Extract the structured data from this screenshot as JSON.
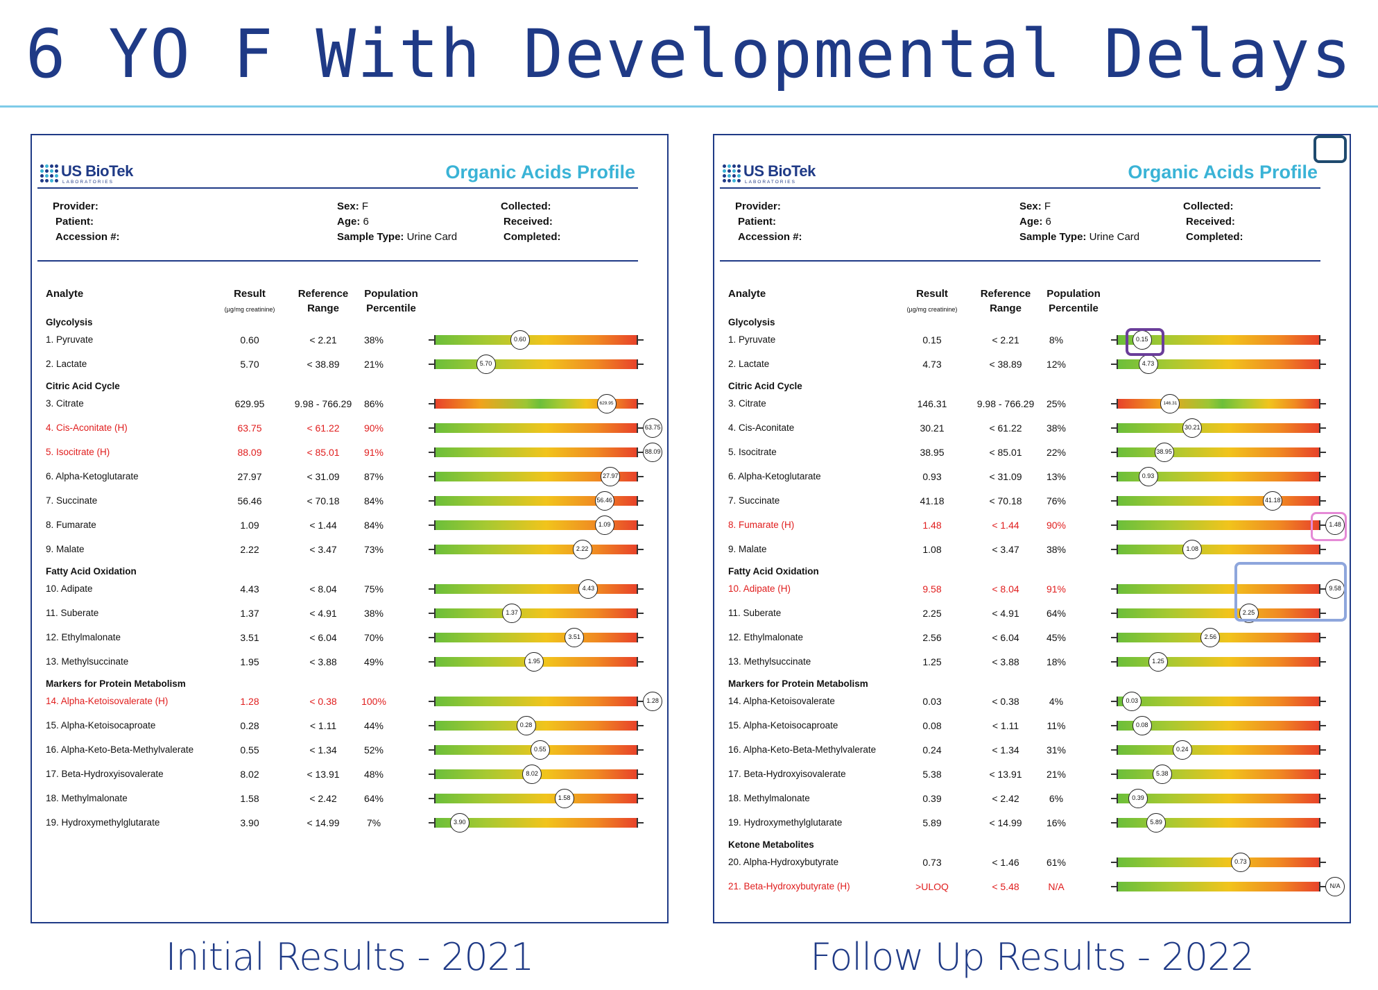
{
  "title": "6 YO F With Developmental Delays",
  "panels": [
    {
      "caption": "Initial Results - 2021",
      "logo": {
        "name": "US BioTek",
        "sub": "LABORATORIES"
      },
      "report_title": "Organic Acids Profile",
      "info": {
        "provider_label": "Provider:",
        "patient_label": "Patient:",
        "accession_label": "Accession #:",
        "sex_label": "Sex:",
        "sex": "F",
        "age_label": "Age:",
        "age": "6",
        "sample_label": "Sample Type:",
        "sample": "Urine Card",
        "collected_label": "Collected:",
        "received_label": "Received:",
        "completed_label": "Completed:"
      },
      "headers": {
        "analyte": "Analyte",
        "result": "Result",
        "unit": "(µg/mg creatinine)",
        "ref1": "Reference",
        "ref2": "Range",
        "pop1": "Population",
        "pop2": "Percentile"
      },
      "rows": [
        {
          "type": "section",
          "label": "Glycolysis"
        },
        {
          "type": "analyte",
          "name": "1. Pyruvate",
          "result": "0.60",
          "ref": "< 2.21",
          "pct": "38%",
          "pos": 0.42,
          "marker": "0.60"
        },
        {
          "type": "analyte",
          "name": "2. Lactate",
          "result": "5.70",
          "ref": "< 38.89",
          "pct": "21%",
          "pos": 0.25,
          "marker": "5.70"
        },
        {
          "type": "section",
          "label": "Citric Acid Cycle"
        },
        {
          "type": "analyte",
          "name": "3. Citrate",
          "result": "629.95",
          "ref": "9.98 - 766.29",
          "pct": "86%",
          "pos": 0.85,
          "marker": "629.95",
          "bar": "mid",
          "small": true
        },
        {
          "type": "analyte",
          "name": "4. Cis-Aconitate (H)",
          "result": "63.75",
          "ref": "< 61.22",
          "pct": "90%",
          "pos": 1.08,
          "marker": "63.75",
          "high": true
        },
        {
          "type": "analyte",
          "name": "5. Isocitrate (H)",
          "result": "88.09",
          "ref": "< 85.01",
          "pct": "91%",
          "pos": 1.08,
          "marker": "88.09",
          "high": true
        },
        {
          "type": "analyte",
          "name": "6. Alpha-Ketoglutarate",
          "result": "27.97",
          "ref": "< 31.09",
          "pct": "87%",
          "pos": 0.87,
          "marker": "27.97"
        },
        {
          "type": "analyte",
          "name": "7. Succinate",
          "result": "56.46",
          "ref": "< 70.18",
          "pct": "84%",
          "pos": 0.84,
          "marker": "56.46"
        },
        {
          "type": "analyte",
          "name": "8. Fumarate",
          "result": "1.09",
          "ref": "< 1.44",
          "pct": "84%",
          "pos": 0.84,
          "marker": "1.09"
        },
        {
          "type": "analyte",
          "name": "9. Malate",
          "result": "2.22",
          "ref": "< 3.47",
          "pct": "73%",
          "pos": 0.73,
          "marker": "2.22"
        },
        {
          "type": "section",
          "label": "Fatty Acid Oxidation"
        },
        {
          "type": "analyte",
          "name": "10. Adipate",
          "result": "4.43",
          "ref": "< 8.04",
          "pct": "75%",
          "pos": 0.76,
          "marker": "4.43"
        },
        {
          "type": "analyte",
          "name": "11. Suberate",
          "result": "1.37",
          "ref": "< 4.91",
          "pct": "38%",
          "pos": 0.38,
          "marker": "1.37"
        },
        {
          "type": "analyte",
          "name": "12. Ethylmalonate",
          "result": "3.51",
          "ref": "< 6.04",
          "pct": "70%",
          "pos": 0.69,
          "marker": "3.51"
        },
        {
          "type": "analyte",
          "name": "13. Methylsuccinate",
          "result": "1.95",
          "ref": "< 3.88",
          "pct": "49%",
          "pos": 0.49,
          "marker": "1.95"
        },
        {
          "type": "section",
          "label": "Markers for Protein Metabolism"
        },
        {
          "type": "analyte",
          "name": "14. Alpha-Ketoisovalerate (H)",
          "result": "1.28",
          "ref": "< 0.38",
          "pct": "100%",
          "pos": 1.08,
          "marker": "1.28",
          "high": true
        },
        {
          "type": "analyte",
          "name": "15. Alpha-Ketoisocaproate",
          "result": "0.28",
          "ref": "< 1.11",
          "pct": "44%",
          "pos": 0.45,
          "marker": "0.28"
        },
        {
          "type": "analyte",
          "name": "16. Alpha-Keto-Beta-Methylvalerate",
          "result": "0.55",
          "ref": "< 1.34",
          "pct": "52%",
          "pos": 0.52,
          "marker": "0.55"
        },
        {
          "type": "analyte",
          "name": "17. Beta-Hydroxyisovalerate",
          "result": "8.02",
          "ref": "< 13.91",
          "pct": "48%",
          "pos": 0.48,
          "marker": "8.02"
        },
        {
          "type": "analyte",
          "name": "18. Methylmalonate",
          "result": "1.58",
          "ref": "< 2.42",
          "pct": "64%",
          "pos": 0.64,
          "marker": "1.58"
        },
        {
          "type": "analyte",
          "name": "19. Hydroxymethylglutarate",
          "result": "3.90",
          "ref": "< 14.99",
          "pct": "7%",
          "pos": 0.12,
          "marker": "3.90"
        }
      ],
      "highlights": []
    },
    {
      "caption": "Follow Up Results - 2022",
      "logo": {
        "name": "US BioTek",
        "sub": "LABORATORIES"
      },
      "report_title": "Organic Acids Profile",
      "info": {
        "provider_label": "Provider:",
        "patient_label": "Patient:",
        "accession_label": "Accession #:",
        "sex_label": "Sex:",
        "sex": "F",
        "age_label": "Age:",
        "age": "6",
        "sample_label": "Sample Type:",
        "sample": "Urine Card",
        "collected_label": "Collected:",
        "received_label": "Received:",
        "completed_label": "Completed:"
      },
      "headers": {
        "analyte": "Analyte",
        "result": "Result",
        "unit": "(µg/mg creatinine)",
        "ref1": "Reference",
        "ref2": "Range",
        "pop1": "Population",
        "pop2": "Percentile"
      },
      "rows": [
        {
          "type": "section",
          "label": "Glycolysis"
        },
        {
          "type": "analyte",
          "name": "1. Pyruvate",
          "result": "0.15",
          "ref": "< 2.21",
          "pct": "8%",
          "pos": 0.12,
          "marker": "0.15"
        },
        {
          "type": "analyte",
          "name": "2. Lactate",
          "result": "4.73",
          "ref": "< 38.89",
          "pct": "12%",
          "pos": 0.15,
          "marker": "4.73"
        },
        {
          "type": "section",
          "label": "Citric Acid Cycle"
        },
        {
          "type": "analyte",
          "name": "3. Citrate",
          "result": "146.31",
          "ref": "9.98 - 766.29",
          "pct": "25%",
          "pos": 0.26,
          "marker": "146.31",
          "bar": "mid",
          "small": true
        },
        {
          "type": "analyte",
          "name": "4. Cis-Aconitate",
          "result": "30.21",
          "ref": "< 61.22",
          "pct": "38%",
          "pos": 0.37,
          "marker": "30.21"
        },
        {
          "type": "analyte",
          "name": "5. Isocitrate",
          "result": "38.95",
          "ref": "< 85.01",
          "pct": "22%",
          "pos": 0.23,
          "marker": "38.95"
        },
        {
          "type": "analyte",
          "name": "6. Alpha-Ketoglutarate",
          "result": "0.93",
          "ref": "< 31.09",
          "pct": "13%",
          "pos": 0.15,
          "marker": "0.93"
        },
        {
          "type": "analyte",
          "name": "7. Succinate",
          "result": "41.18",
          "ref": "< 70.18",
          "pct": "76%",
          "pos": 0.77,
          "marker": "41.18"
        },
        {
          "type": "analyte",
          "name": "8. Fumarate (H)",
          "result": "1.48",
          "ref": "< 1.44",
          "pct": "90%",
          "pos": 1.08,
          "marker": "1.48",
          "high": true
        },
        {
          "type": "analyte",
          "name": "9. Malate",
          "result": "1.08",
          "ref": "< 3.47",
          "pct": "38%",
          "pos": 0.37,
          "marker": "1.08"
        },
        {
          "type": "section",
          "label": "Fatty Acid Oxidation"
        },
        {
          "type": "analyte",
          "name": "10. Adipate (H)",
          "result": "9.58",
          "ref": "< 8.04",
          "pct": "91%",
          "pos": 1.08,
          "marker": "9.58",
          "high": true
        },
        {
          "type": "analyte",
          "name": "11. Suberate",
          "result": "2.25",
          "ref": "< 4.91",
          "pct": "64%",
          "pos": 0.65,
          "marker": "2.25"
        },
        {
          "type": "analyte",
          "name": "12. Ethylmalonate",
          "result": "2.56",
          "ref": "< 6.04",
          "pct": "45%",
          "pos": 0.46,
          "marker": "2.56"
        },
        {
          "type": "analyte",
          "name": "13. Methylsuccinate",
          "result": "1.25",
          "ref": "< 3.88",
          "pct": "18%",
          "pos": 0.2,
          "marker": "1.25"
        },
        {
          "type": "section",
          "label": "Markers for Protein Metabolism"
        },
        {
          "type": "analyte",
          "name": "14. Alpha-Ketoisovalerate",
          "result": "0.03",
          "ref": "< 0.38",
          "pct": "4%",
          "pos": 0.07,
          "marker": "0.03"
        },
        {
          "type": "analyte",
          "name": "15. Alpha-Ketoisocaproate",
          "result": "0.08",
          "ref": "< 1.11",
          "pct": "11%",
          "pos": 0.12,
          "marker": "0.08"
        },
        {
          "type": "analyte",
          "name": "16. Alpha-Keto-Beta-Methylvalerate",
          "result": "0.24",
          "ref": "< 1.34",
          "pct": "31%",
          "pos": 0.32,
          "marker": "0.24"
        },
        {
          "type": "analyte",
          "name": "17. Beta-Hydroxyisovalerate",
          "result": "5.38",
          "ref": "< 13.91",
          "pct": "21%",
          "pos": 0.22,
          "marker": "5.38"
        },
        {
          "type": "analyte",
          "name": "18. Methylmalonate",
          "result": "0.39",
          "ref": "< 2.42",
          "pct": "6%",
          "pos": 0.1,
          "marker": "0.39"
        },
        {
          "type": "analyte",
          "name": "19. Hydroxymethylglutarate",
          "result": "5.89",
          "ref": "< 14.99",
          "pct": "16%",
          "pos": 0.19,
          "marker": "5.89"
        },
        {
          "type": "section",
          "label": "Ketone Metabolites"
        },
        {
          "type": "analyte",
          "name": "20. Alpha-Hydroxybutyrate",
          "result": "0.73",
          "ref": "< 1.46",
          "pct": "61%",
          "pos": 0.61,
          "marker": "0.73"
        },
        {
          "type": "analyte",
          "name": "21. Beta-Hydroxybutyrate (H)",
          "result": ">ULOQ",
          "ref": "< 5.48",
          "pct": "N/A",
          "pos": 1.08,
          "marker": "N/A",
          "high": true
        }
      ],
      "highlights": [
        {
          "name": "pyruvate-highlight",
          "row": 1,
          "color": "#6a3d9a"
        },
        {
          "name": "fumarate-highlight",
          "row": 9,
          "color": "#e58ad6"
        },
        {
          "name": "adipate-suberate-highlight",
          "row": 12,
          "color": "#8ea6dc"
        },
        {
          "name": "beta-hydroxybutyrate-highlight",
          "row": 26,
          "color": "#1f4a6e"
        }
      ]
    }
  ]
}
